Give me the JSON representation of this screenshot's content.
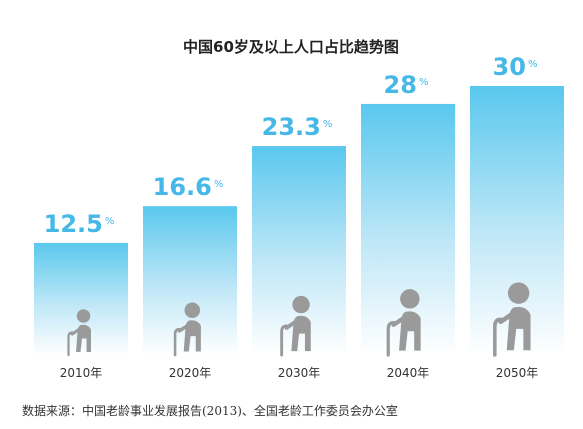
{
  "chart_data": {
    "type": "bar",
    "title": "中国60岁及以上人口占比趋势图",
    "categories": [
      "2010年",
      "2020年",
      "2030年",
      "2040年",
      "2050年"
    ],
    "values": [
      12.5,
      16.6,
      23.3,
      28,
      30
    ],
    "value_labels": [
      "12.5",
      "16.6",
      "23.3",
      "28",
      "30"
    ],
    "value_suffix": "%",
    "ylim": [
      0,
      30
    ],
    "grid": false,
    "legend": "none",
    "colors": {
      "bar_top": "#5ac8ee",
      "bar_bottom": "#ffffff",
      "value_text": "#45b8e8",
      "figure": "#9a9a9a"
    },
    "icons": [
      "elderly-person-with-cane-icon"
    ]
  },
  "source": "数据来源：中国老龄事业发展报告(2013)、全国老龄工作委员会办公室"
}
